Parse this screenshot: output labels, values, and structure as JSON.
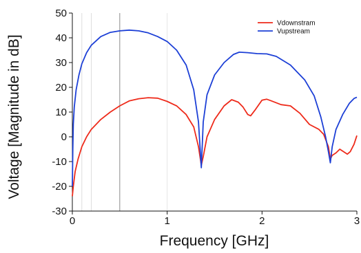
{
  "chart_data": {
    "type": "line",
    "title": "",
    "xlabel": "Frequency [GHz]",
    "ylabel": "Voltage [Magnitude in dB]",
    "xlim": [
      0,
      3
    ],
    "ylim": [
      -30,
      50
    ],
    "x_ticks": [
      "0",
      "1",
      "2",
      "3"
    ],
    "y_ticks": [
      "-30",
      "-20",
      "-10",
      "0",
      "10",
      "20",
      "30",
      "40",
      "50"
    ],
    "grid": "faint vertical lines at x = 0.1, 0.2, 0.5 (darker), 1.0",
    "legend_position": "top-right",
    "series": [
      {
        "name": "Vdownstram",
        "color": "#ee2a1a",
        "points": [
          [
            0.0,
            -24
          ],
          [
            0.01,
            -20
          ],
          [
            0.03,
            -14
          ],
          [
            0.06,
            -9
          ],
          [
            0.1,
            -4
          ],
          [
            0.15,
            0
          ],
          [
            0.2,
            3
          ],
          [
            0.3,
            7
          ],
          [
            0.4,
            10
          ],
          [
            0.5,
            12.5
          ],
          [
            0.6,
            14.5
          ],
          [
            0.7,
            15.4
          ],
          [
            0.8,
            15.8
          ],
          [
            0.9,
            15.6
          ],
          [
            1.0,
            14.3
          ],
          [
            1.1,
            12.5
          ],
          [
            1.2,
            9
          ],
          [
            1.28,
            4
          ],
          [
            1.33,
            -4
          ],
          [
            1.36,
            -11.5
          ],
          [
            1.38,
            -8
          ],
          [
            1.42,
            0
          ],
          [
            1.5,
            7
          ],
          [
            1.6,
            12.5
          ],
          [
            1.68,
            15
          ],
          [
            1.75,
            14
          ],
          [
            1.8,
            12
          ],
          [
            1.85,
            9
          ],
          [
            1.88,
            8.5
          ],
          [
            1.93,
            11
          ],
          [
            2.0,
            14.8
          ],
          [
            2.05,
            15.2
          ],
          [
            2.1,
            14.5
          ],
          [
            2.2,
            13
          ],
          [
            2.3,
            12.5
          ],
          [
            2.4,
            9.5
          ],
          [
            2.5,
            5
          ],
          [
            2.6,
            3
          ],
          [
            2.65,
            1
          ],
          [
            2.7,
            -4
          ],
          [
            2.72,
            -9
          ],
          [
            2.74,
            -7.5
          ],
          [
            2.78,
            -6.5
          ],
          [
            2.82,
            -5
          ],
          [
            2.86,
            -6
          ],
          [
            2.9,
            -7
          ],
          [
            2.93,
            -6
          ],
          [
            2.97,
            -3
          ],
          [
            3.0,
            0.5
          ]
        ]
      },
      {
        "name": "Vupstream",
        "color": "#1c3fd6",
        "points": [
          [
            0.0,
            -20
          ],
          [
            0.005,
            -5
          ],
          [
            0.01,
            5
          ],
          [
            0.02,
            12
          ],
          [
            0.04,
            19
          ],
          [
            0.07,
            25
          ],
          [
            0.1,
            29.5
          ],
          [
            0.15,
            34
          ],
          [
            0.2,
            37
          ],
          [
            0.3,
            40.5
          ],
          [
            0.4,
            42.2
          ],
          [
            0.5,
            42.8
          ],
          [
            0.6,
            43.1
          ],
          [
            0.7,
            42.8
          ],
          [
            0.8,
            42
          ],
          [
            0.9,
            40.5
          ],
          [
            1.0,
            38.5
          ],
          [
            1.1,
            35
          ],
          [
            1.2,
            29
          ],
          [
            1.28,
            19
          ],
          [
            1.33,
            6
          ],
          [
            1.36,
            -12.5
          ],
          [
            1.38,
            6
          ],
          [
            1.42,
            17
          ],
          [
            1.5,
            25
          ],
          [
            1.6,
            30
          ],
          [
            1.7,
            33.3
          ],
          [
            1.76,
            34.2
          ],
          [
            1.85,
            34
          ],
          [
            1.95,
            33.6
          ],
          [
            2.05,
            33.5
          ],
          [
            2.15,
            32.5
          ],
          [
            2.3,
            29
          ],
          [
            2.45,
            23
          ],
          [
            2.55,
            16.5
          ],
          [
            2.62,
            8
          ],
          [
            2.67,
            0
          ],
          [
            2.7,
            -6
          ],
          [
            2.72,
            -10.5
          ],
          [
            2.74,
            -4
          ],
          [
            2.78,
            3
          ],
          [
            2.85,
            9
          ],
          [
            2.92,
            13.5
          ],
          [
            2.97,
            15.5
          ],
          [
            3.0,
            16
          ]
        ]
      }
    ]
  }
}
